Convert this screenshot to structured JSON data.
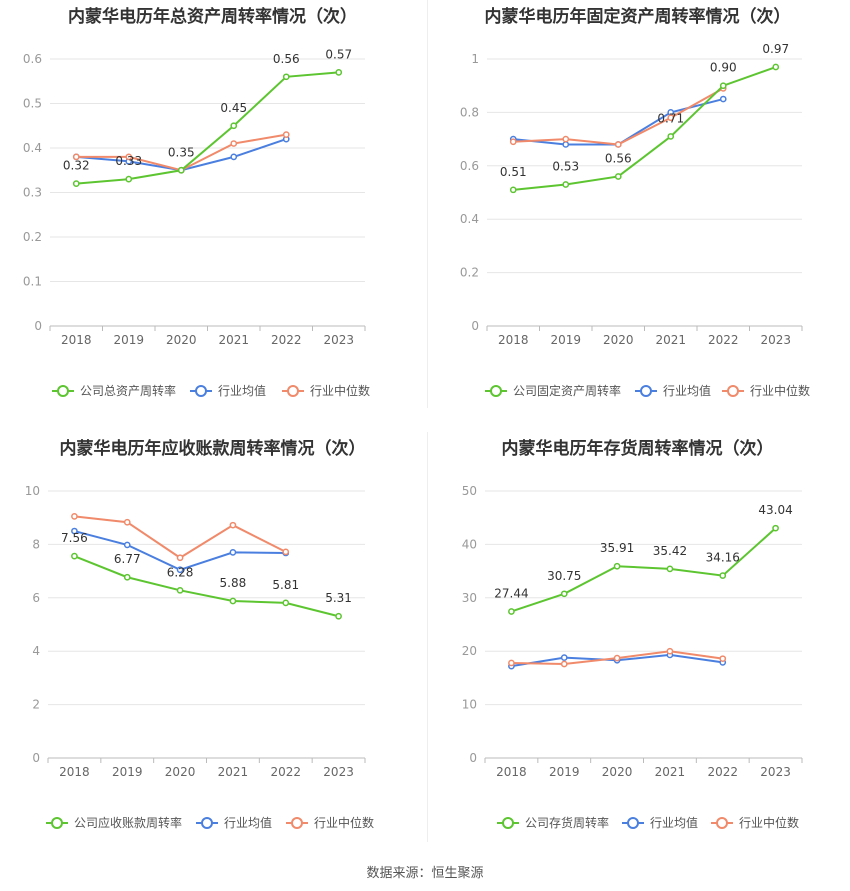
{
  "colors": {
    "company": "#5cc530",
    "avg": "#4a7fe0",
    "median": "#f08a6a",
    "grid": "#e6e6e6",
    "axis": "#999999"
  },
  "source": "数据来源：恒生聚源",
  "legend": {
    "avg": "行业均值",
    "median": "行业中位数"
  },
  "chart_data": [
    {
      "type": "line",
      "title": "内蒙华电历年总资产周转率情况（次）",
      "categories": [
        "2018",
        "2019",
        "2020",
        "2021",
        "2022",
        "2023"
      ],
      "yticks": [
        "0",
        "0.1",
        "0.2",
        "0.3",
        "0.4",
        "0.5",
        "0.6"
      ],
      "ylim": [
        0,
        0.6
      ],
      "series": [
        {
          "name": "公司总资产周转率",
          "role": "company",
          "values": [
            0.32,
            0.33,
            0.35,
            0.45,
            0.56,
            0.57
          ],
          "labels": [
            "0.32",
            "0.33",
            "0.35",
            "0.45",
            "0.56",
            "0.57"
          ]
        },
        {
          "name": "行业均值",
          "role": "avg",
          "values": [
            0.38,
            0.37,
            0.35,
            0.38,
            0.42,
            null
          ]
        },
        {
          "name": "行业中位数",
          "role": "median",
          "values": [
            0.38,
            0.38,
            0.35,
            0.41,
            0.43,
            null
          ]
        }
      ]
    },
    {
      "type": "line",
      "title": "内蒙华电历年固定资产周转率情况（次）",
      "categories": [
        "2018",
        "2019",
        "2020",
        "2021",
        "2022",
        "2023"
      ],
      "yticks": [
        "0",
        "0.2",
        "0.4",
        "0.6",
        "0.8",
        "1"
      ],
      "ylim": [
        0,
        1
      ],
      "series": [
        {
          "name": "公司固定资产周转率",
          "role": "company",
          "values": [
            0.51,
            0.53,
            0.56,
            0.71,
            0.9,
            0.97
          ],
          "labels": [
            "0.51",
            "0.53",
            "0.56",
            "0.71",
            "0.90",
            "0.97"
          ]
        },
        {
          "name": "行业均值",
          "role": "avg",
          "values": [
            0.7,
            0.68,
            0.68,
            0.8,
            0.85,
            null
          ]
        },
        {
          "name": "行业中位数",
          "role": "median",
          "values": [
            0.69,
            0.7,
            0.68,
            0.78,
            0.89,
            null
          ]
        }
      ]
    },
    {
      "type": "line",
      "title": "内蒙华电历年应收账款周转率情况（次）",
      "categories": [
        "2018",
        "2019",
        "2020",
        "2021",
        "2022",
        "2023"
      ],
      "yticks": [
        "0",
        "2",
        "4",
        "6",
        "8",
        "10"
      ],
      "ylim": [
        0,
        10
      ],
      "series": [
        {
          "name": "公司应收账款周转率",
          "role": "company",
          "values": [
            7.56,
            6.77,
            6.28,
            5.88,
            5.81,
            5.31
          ],
          "labels": [
            "7.56",
            "6.77",
            "6.28",
            "5.88",
            "5.81",
            "5.31"
          ]
        },
        {
          "name": "行业均值",
          "role": "avg",
          "values": [
            8.5,
            7.98,
            7.05,
            7.7,
            7.68,
            null
          ]
        },
        {
          "name": "行业中位数",
          "role": "median",
          "values": [
            9.05,
            8.83,
            7.5,
            8.72,
            7.72,
            null
          ]
        }
      ]
    },
    {
      "type": "line",
      "title": "内蒙华电历年存货周转率情况（次）",
      "categories": [
        "2018",
        "2019",
        "2020",
        "2021",
        "2022",
        "2023"
      ],
      "yticks": [
        "0",
        "10",
        "20",
        "30",
        "40",
        "50"
      ],
      "ylim": [
        0,
        50
      ],
      "series": [
        {
          "name": "公司存货周转率",
          "role": "company",
          "values": [
            27.44,
            30.75,
            35.91,
            35.42,
            34.16,
            43.04
          ],
          "labels": [
            "27.44",
            "30.75",
            "35.91",
            "35.42",
            "34.16",
            "43.04"
          ]
        },
        {
          "name": "行业均值",
          "role": "avg",
          "values": [
            17.2,
            18.8,
            18.3,
            19.3,
            17.9,
            null
          ]
        },
        {
          "name": "行业中位数",
          "role": "median",
          "values": [
            17.8,
            17.6,
            18.7,
            20.0,
            18.6,
            null
          ]
        }
      ]
    }
  ]
}
